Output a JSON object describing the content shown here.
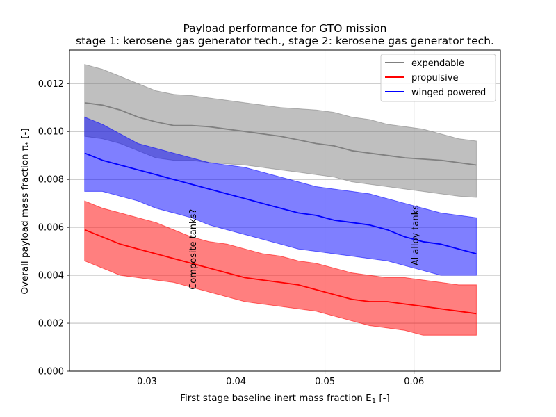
{
  "chart_data": {
    "type": "line",
    "title": "Payload performance for GTO mission",
    "subtitle": "stage 1: kerosene gas generator tech., stage 2: kerosene gas generator tech.",
    "xlabel": "First stage baseline inert mass fraction E",
    "xlabel_sub": "1",
    "xlabel_unit": " [-]",
    "ylabel": "Overall payload mass fraction π",
    "ylabel_sub": "*",
    "ylabel_unit": " [-]",
    "xlim": [
      0.0213,
      0.0697
    ],
    "ylim": [
      0.0,
      0.0134
    ],
    "xticks": [
      0.03,
      0.04,
      0.05,
      0.06
    ],
    "xtick_labels": [
      "0.03",
      "0.04",
      "0.05",
      "0.06"
    ],
    "yticks": [
      0.0,
      0.002,
      0.004,
      0.006,
      0.008,
      0.01,
      0.012
    ],
    "ytick_labels": [
      "0.000",
      "0.002",
      "0.004",
      "0.006",
      "0.008",
      "0.010",
      "0.012"
    ],
    "grid": true,
    "legend_position": "top-right",
    "x": [
      0.023,
      0.025,
      0.027,
      0.029,
      0.031,
      0.033,
      0.035,
      0.037,
      0.039,
      0.041,
      0.043,
      0.045,
      0.047,
      0.049,
      0.051,
      0.053,
      0.055,
      0.057,
      0.059,
      0.061,
      0.063,
      0.065,
      0.067
    ],
    "series": [
      {
        "name": "expendable",
        "color": "#808080",
        "band_color": "#808080",
        "band_opacity": 0.5,
        "values": [
          0.0112,
          0.0111,
          0.0109,
          0.0106,
          0.0104,
          0.01025,
          0.01025,
          0.0102,
          0.0101,
          0.01,
          0.0099,
          0.0098,
          0.00965,
          0.0095,
          0.0094,
          0.0092,
          0.0091,
          0.009,
          0.0089,
          0.00885,
          0.0088,
          0.0087,
          0.0086
        ],
        "lower": [
          0.0098,
          0.0097,
          0.0095,
          0.0092,
          0.0089,
          0.0088,
          0.0088,
          0.0087,
          0.00865,
          0.0086,
          0.0085,
          0.0084,
          0.0083,
          0.0082,
          0.0081,
          0.0079,
          0.0078,
          0.0077,
          0.0076,
          0.0075,
          0.0074,
          0.0073,
          0.00725
        ],
        "upper": [
          0.0128,
          0.0126,
          0.0123,
          0.012,
          0.0117,
          0.01155,
          0.0115,
          0.0114,
          0.0113,
          0.0112,
          0.0111,
          0.011,
          0.01095,
          0.0109,
          0.0108,
          0.0106,
          0.0105,
          0.0103,
          0.0102,
          0.0101,
          0.0099,
          0.0097,
          0.0096
        ]
      },
      {
        "name": "propulsive",
        "color": "#ff0000",
        "band_color": "#ff0000",
        "band_opacity": 0.5,
        "values": [
          0.0059,
          0.0056,
          0.0053,
          0.0051,
          0.0049,
          0.0047,
          0.0045,
          0.0043,
          0.0041,
          0.0039,
          0.0038,
          0.0037,
          0.0036,
          0.0034,
          0.0032,
          0.003,
          0.0029,
          0.0029,
          0.0028,
          0.0027,
          0.0026,
          0.0025,
          0.0024
        ],
        "lower": [
          0.0046,
          0.0043,
          0.004,
          0.0039,
          0.0038,
          0.0037,
          0.0035,
          0.0033,
          0.0031,
          0.0029,
          0.0028,
          0.0027,
          0.0026,
          0.0025,
          0.0023,
          0.0021,
          0.0019,
          0.0018,
          0.0017,
          0.0015,
          0.0015,
          0.0015,
          0.0015
        ],
        "upper": [
          0.0071,
          0.0068,
          0.0066,
          0.0064,
          0.0062,
          0.0059,
          0.0056,
          0.0054,
          0.0053,
          0.0051,
          0.0049,
          0.0048,
          0.0046,
          0.0045,
          0.0043,
          0.0041,
          0.004,
          0.0039,
          0.0039,
          0.0038,
          0.0037,
          0.0036,
          0.0036
        ]
      },
      {
        "name": "winged powered",
        "color": "#0000ff",
        "band_color": "#0000ff",
        "band_opacity": 0.5,
        "values": [
          0.0091,
          0.0088,
          0.0086,
          0.0084,
          0.0082,
          0.008,
          0.0078,
          0.0076,
          0.0074,
          0.0072,
          0.007,
          0.0068,
          0.0066,
          0.0065,
          0.0063,
          0.0062,
          0.0061,
          0.0059,
          0.0056,
          0.0054,
          0.0053,
          0.0051,
          0.0049
        ],
        "lower": [
          0.0075,
          0.0075,
          0.0073,
          0.0071,
          0.0068,
          0.0066,
          0.0064,
          0.0061,
          0.0059,
          0.0057,
          0.0055,
          0.0053,
          0.0051,
          0.005,
          0.0049,
          0.0048,
          0.0047,
          0.0046,
          0.0044,
          0.0042,
          0.004,
          0.004,
          0.004
        ],
        "upper": [
          0.0106,
          0.0103,
          0.0099,
          0.0095,
          0.0093,
          0.0091,
          0.0089,
          0.0087,
          0.0086,
          0.0085,
          0.0083,
          0.0081,
          0.0079,
          0.0077,
          0.0076,
          0.0075,
          0.0074,
          0.0072,
          0.007,
          0.0068,
          0.0066,
          0.0065,
          0.0064
        ]
      }
    ],
    "annotations": [
      {
        "text": "Composite tanks?",
        "x": 0.0355,
        "y": 0.0034,
        "rotation": 90
      },
      {
        "text": "Al alloy tanks",
        "x": 0.0605,
        "y": 0.0044,
        "rotation": 90
      }
    ]
  }
}
